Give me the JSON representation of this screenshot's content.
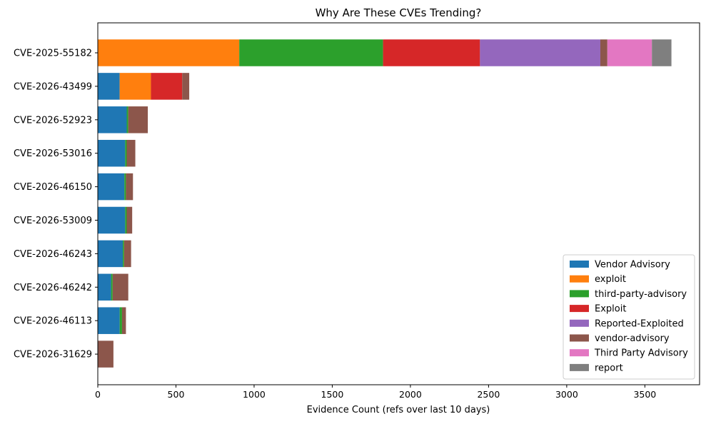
{
  "chart_data": {
    "type": "bar",
    "orientation": "horizontal",
    "stacked": true,
    "title": "Why Are These CVEs Trending?",
    "xlabel": "Evidence Count (refs over last 10 days)",
    "ylabel": "",
    "xlim": [
      0,
      3850
    ],
    "xticks": [
      0,
      500,
      1000,
      1500,
      2000,
      2500,
      3000,
      3500
    ],
    "grid": false,
    "legend_position": "lower-right",
    "categories": [
      "CVE-2025-55182",
      "CVE-2026-43499",
      "CVE-2026-52923",
      "CVE-2026-53016",
      "CVE-2026-46150",
      "CVE-2026-53009",
      "CVE-2026-46243",
      "CVE-2026-46242",
      "CVE-2026-46113",
      "CVE-2026-31629"
    ],
    "series": [
      {
        "name": "Vendor Advisory",
        "color": "#1f77b4",
        "values": [
          0,
          140,
          185,
          175,
          170,
          175,
          160,
          85,
          140,
          0
        ]
      },
      {
        "name": "exploit",
        "color": "#ff7f0e",
        "values": [
          905,
          200,
          0,
          0,
          0,
          0,
          0,
          0,
          0,
          0
        ]
      },
      {
        "name": "third-party-advisory",
        "color": "#2ca02c",
        "values": [
          920,
          0,
          10,
          10,
          10,
          10,
          8,
          10,
          15,
          0
        ]
      },
      {
        "name": "Exploit",
        "color": "#d62728",
        "values": [
          620,
          200,
          0,
          0,
          0,
          0,
          0,
          0,
          0,
          0
        ]
      },
      {
        "name": "Reported-Exploited",
        "color": "#9467bd",
        "values": [
          770,
          0,
          0,
          0,
          0,
          0,
          0,
          0,
          0,
          0
        ]
      },
      {
        "name": "vendor-advisory",
        "color": "#8c564b",
        "values": [
          45,
          45,
          125,
          55,
          45,
          35,
          45,
          100,
          25,
          100
        ]
      },
      {
        "name": "Third Party Advisory",
        "color": "#e377c2",
        "values": [
          285,
          0,
          0,
          0,
          0,
          0,
          0,
          0,
          0,
          0
        ]
      },
      {
        "name": "report",
        "color": "#7f7f7f",
        "values": [
          125,
          0,
          0,
          0,
          0,
          0,
          0,
          0,
          0,
          0
        ]
      }
    ]
  }
}
